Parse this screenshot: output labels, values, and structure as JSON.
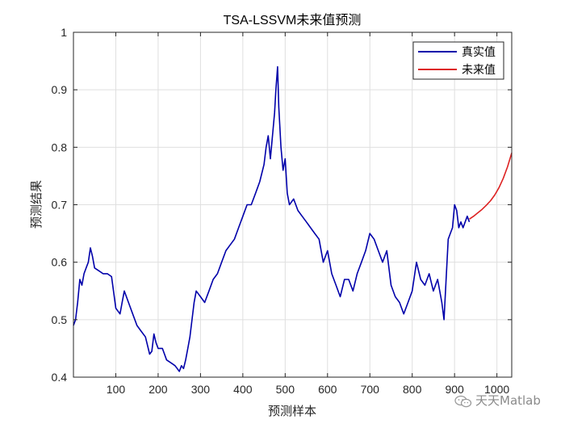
{
  "chart_data": {
    "type": "line",
    "title": "TSA-LSSVM未来值预测",
    "xlabel": "预测样本",
    "ylabel": "预测结果",
    "xlim": [
      0,
      1035
    ],
    "ylim": [
      0.4,
      1.0
    ],
    "xticks": [
      100,
      200,
      300,
      400,
      500,
      600,
      700,
      800,
      900,
      1000
    ],
    "xtick_labels": [
      "100",
      "200",
      "300",
      "400",
      "500",
      "600",
      "700",
      "800",
      "900",
      "1000"
    ],
    "yticks": [
      0.4,
      0.5,
      0.6,
      0.7,
      0.8,
      0.9,
      1.0
    ],
    "ytick_labels": [
      "0.4",
      "0.5",
      "0.6",
      "0.7",
      "0.8",
      "0.9",
      "1"
    ],
    "grid": true,
    "legend_position": "top-right",
    "series": [
      {
        "name": "真实值",
        "color": "#0000aa",
        "x": [
          0,
          5,
          10,
          15,
          20,
          25,
          30,
          35,
          40,
          45,
          50,
          60,
          70,
          80,
          90,
          100,
          110,
          115,
          120,
          130,
          140,
          150,
          160,
          170,
          180,
          185,
          190,
          195,
          200,
          210,
          220,
          230,
          240,
          250,
          255,
          260,
          265,
          270,
          275,
          280,
          285,
          290,
          300,
          310,
          320,
          330,
          340,
          350,
          360,
          370,
          380,
          390,
          400,
          410,
          420,
          430,
          440,
          450,
          455,
          460,
          465,
          470,
          475,
          478,
          482,
          485,
          490,
          495,
          500,
          505,
          510,
          520,
          530,
          540,
          550,
          560,
          570,
          580,
          590,
          600,
          610,
          620,
          630,
          640,
          650,
          660,
          670,
          680,
          690,
          700,
          710,
          720,
          730,
          740,
          750,
          760,
          770,
          775,
          780,
          790,
          800,
          810,
          820,
          830,
          840,
          850,
          860,
          870,
          875,
          880,
          885,
          890,
          895,
          900,
          905,
          910,
          915,
          920,
          925,
          930,
          935
        ],
        "y": [
          0.49,
          0.5,
          0.53,
          0.57,
          0.56,
          0.58,
          0.59,
          0.6,
          0.625,
          0.61,
          0.59,
          0.585,
          0.58,
          0.58,
          0.575,
          0.52,
          0.51,
          0.53,
          0.55,
          0.53,
          0.51,
          0.49,
          0.48,
          0.47,
          0.44,
          0.445,
          0.475,
          0.46,
          0.45,
          0.45,
          0.43,
          0.425,
          0.42,
          0.41,
          0.42,
          0.415,
          0.43,
          0.45,
          0.47,
          0.5,
          0.53,
          0.55,
          0.54,
          0.53,
          0.55,
          0.57,
          0.58,
          0.6,
          0.62,
          0.63,
          0.64,
          0.66,
          0.68,
          0.7,
          0.7,
          0.72,
          0.74,
          0.77,
          0.8,
          0.82,
          0.78,
          0.82,
          0.86,
          0.9,
          0.94,
          0.87,
          0.8,
          0.76,
          0.78,
          0.72,
          0.7,
          0.71,
          0.69,
          0.68,
          0.67,
          0.66,
          0.65,
          0.64,
          0.6,
          0.62,
          0.58,
          0.56,
          0.54,
          0.57,
          0.57,
          0.55,
          0.58,
          0.6,
          0.62,
          0.65,
          0.64,
          0.62,
          0.6,
          0.62,
          0.56,
          0.54,
          0.53,
          0.52,
          0.51,
          0.53,
          0.55,
          0.6,
          0.57,
          0.56,
          0.58,
          0.55,
          0.57,
          0.53,
          0.5,
          0.57,
          0.64,
          0.65,
          0.66,
          0.7,
          0.69,
          0.66,
          0.67,
          0.66,
          0.67,
          0.68,
          0.67
        ]
      },
      {
        "name": "未来值",
        "color": "#dd2222",
        "x": [
          935,
          945,
          955,
          965,
          975,
          985,
          995,
          1005,
          1015,
          1025,
          1035
        ],
        "y": [
          0.675,
          0.68,
          0.686,
          0.692,
          0.699,
          0.707,
          0.717,
          0.73,
          0.746,
          0.766,
          0.79
        ]
      }
    ]
  },
  "watermark": {
    "text": "天天Matlab",
    "icon": "wechat-icon"
  }
}
